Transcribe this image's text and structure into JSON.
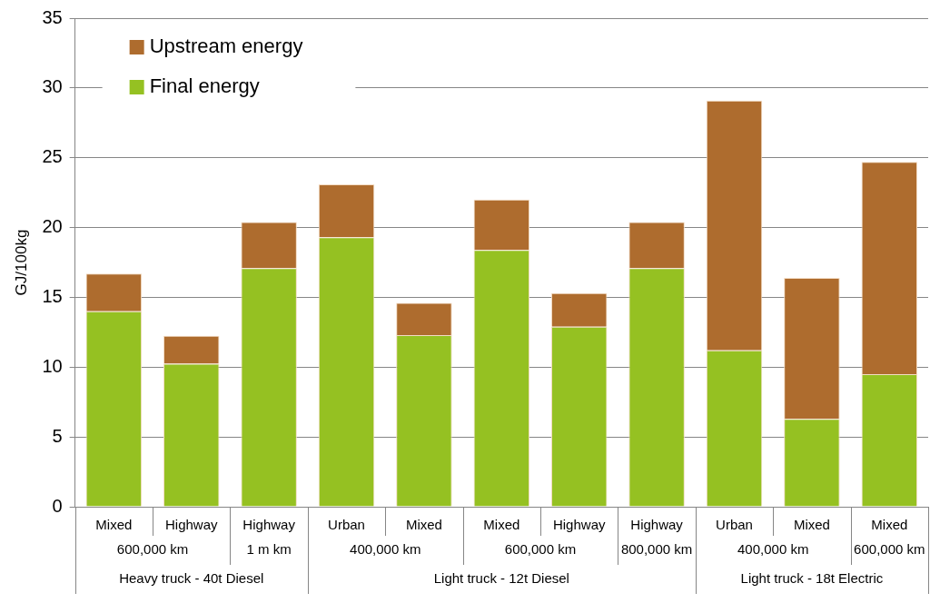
{
  "chart_data": {
    "type": "bar",
    "stacked": true,
    "ylabel": "GJ/100kg",
    "categories": [
      "Mixed",
      "Highway",
      "Highway",
      "Urban",
      "Mixed",
      "Mixed",
      "Highway",
      "Highway",
      "Urban",
      "Mixed",
      "Mixed"
    ],
    "annotations": [
      "600,000 km",
      "1 m km",
      "400,000 km",
      "600,000 km",
      "800,000 km",
      "400,000 km",
      "600,000 km",
      "Heavy truck - 40t Diesel",
      "Light truck - 12t Diesel",
      "Light truck - 18t Electric"
    ],
    "series": [
      {
        "name": "Final energy",
        "color": "#95c122",
        "values": [
          14.0,
          10.25,
          17.1,
          19.3,
          12.3,
          18.4,
          12.9,
          17.1,
          11.2,
          6.3,
          9.5
        ]
      },
      {
        "name": "Upstream energy",
        "color": "#ae6c2e",
        "values": [
          2.7,
          2.0,
          3.3,
          3.8,
          2.3,
          3.6,
          2.4,
          3.3,
          17.9,
          10.1,
          15.2
        ]
      }
    ],
    "ylim": [
      0,
      35
    ],
    "yticks": [
      0,
      5,
      10,
      15,
      20,
      25,
      30,
      35
    ],
    "grid": "y",
    "legend": "top left"
  }
}
